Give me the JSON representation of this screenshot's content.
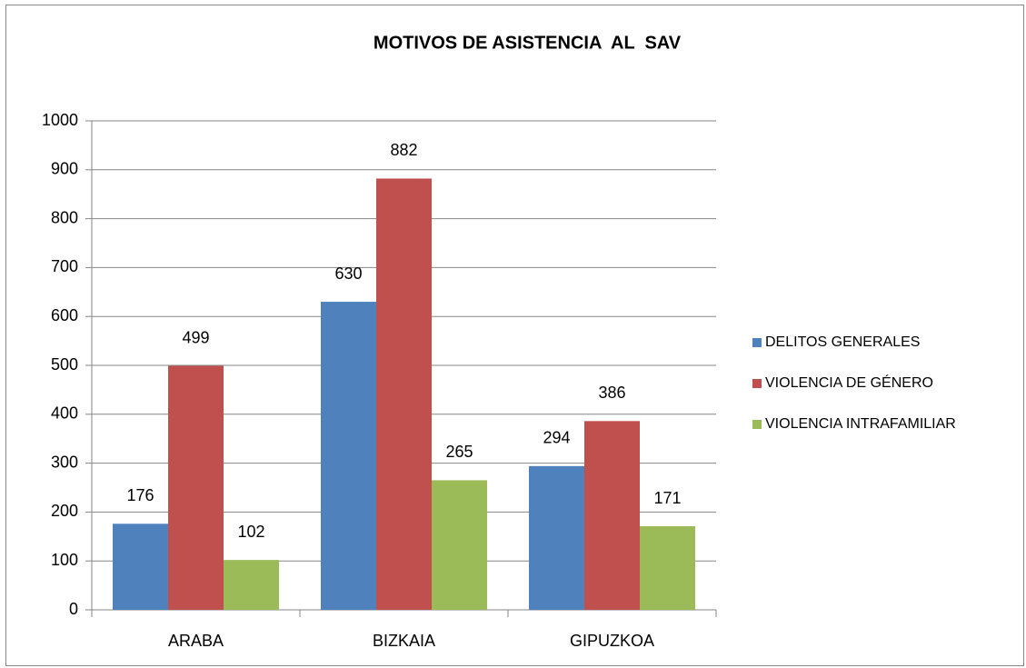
{
  "chart_data": {
    "type": "bar",
    "title": "MOTIVOS DE ASISTENCIA  AL  SAV",
    "categories": [
      "ARABA",
      "BIZKAIA",
      "GIPUZKOA"
    ],
    "series": [
      {
        "name": "DELITOS GENERALES",
        "color": "#4f81bd",
        "values": [
          176,
          630,
          294
        ]
      },
      {
        "name": "VIOLENCIA DE GÉNERO",
        "color": "#c0504d",
        "values": [
          499,
          882,
          386
        ]
      },
      {
        "name": "VIOLENCIA INTRAFAMILIAR",
        "color": "#9bbb59",
        "values": [
          102,
          265,
          171
        ]
      }
    ],
    "ylim": [
      0,
      1000
    ],
    "yticks": [
      0,
      100,
      200,
      300,
      400,
      500,
      600,
      700,
      800,
      900,
      1000
    ],
    "grid": true,
    "legend": "right"
  }
}
